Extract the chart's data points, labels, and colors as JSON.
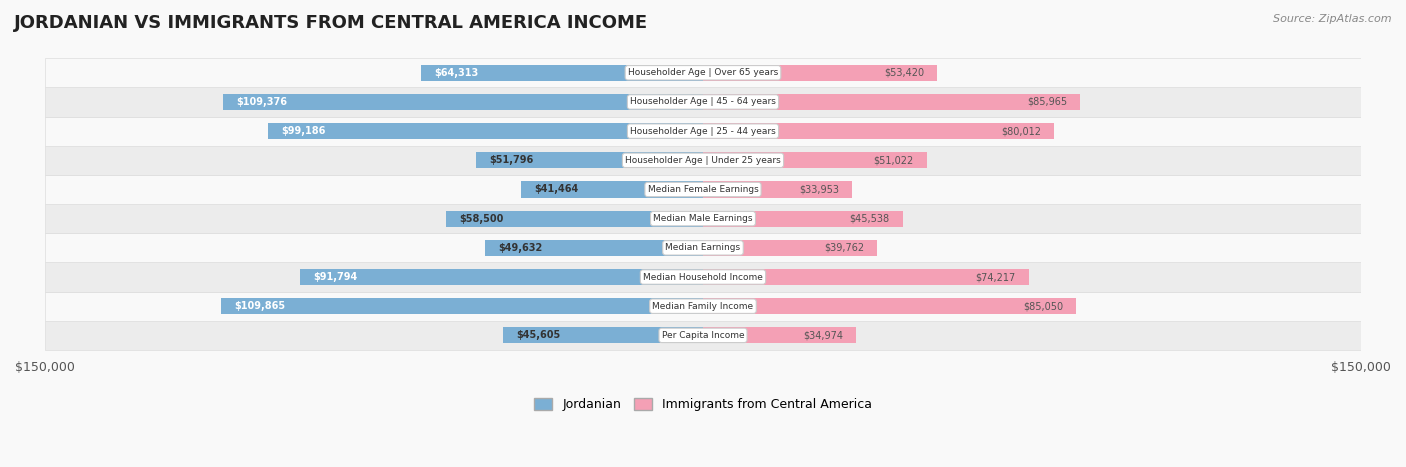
{
  "title": "JORDANIAN VS IMMIGRANTS FROM CENTRAL AMERICA INCOME",
  "source": "Source: ZipAtlas.com",
  "categories": [
    "Per Capita Income",
    "Median Family Income",
    "Median Household Income",
    "Median Earnings",
    "Median Male Earnings",
    "Median Female Earnings",
    "Householder Age | Under 25 years",
    "Householder Age | 25 - 44 years",
    "Householder Age | 45 - 64 years",
    "Householder Age | Over 65 years"
  ],
  "jordanian_values": [
    45605,
    109865,
    91794,
    49632,
    58500,
    41464,
    51796,
    99186,
    109376,
    64313
  ],
  "immigrant_values": [
    34974,
    85050,
    74217,
    39762,
    45538,
    33953,
    51022,
    80012,
    85965,
    53420
  ],
  "jordanian_labels": [
    "$45,605",
    "$109,865",
    "$91,794",
    "$49,632",
    "$58,500",
    "$41,464",
    "$51,796",
    "$99,186",
    "$109,376",
    "$64,313"
  ],
  "immigrant_labels": [
    "$34,974",
    "$85,050",
    "$74,217",
    "$39,762",
    "$45,538",
    "$33,953",
    "$51,022",
    "$80,012",
    "$85,965",
    "$53,420"
  ],
  "jordanian_color": "#7bafd4",
  "jordanian_color_dark": "#5b9bc7",
  "immigrant_color": "#f4a0b5",
  "immigrant_color_dark": "#e87090",
  "max_value": 150000,
  "x_tick_labels": [
    "$150,000",
    "$150,000"
  ],
  "legend_jordanian": "Jordanian",
  "legend_immigrant": "Immigrants from Central America",
  "bg_color": "#f5f5f5",
  "row_bg_color": "#ffffff",
  "row_alt_bg_color": "#f0f0f0"
}
